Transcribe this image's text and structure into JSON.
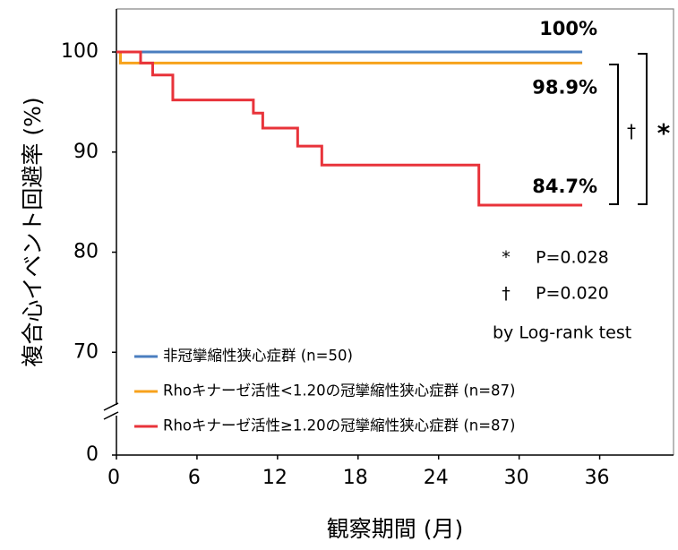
{
  "chart_data": {
    "type": "step",
    "xlabel": "観察期間 (月)",
    "ylabel": "複合心イベント回避率 (%)",
    "xlim": [
      0,
      41.5
    ],
    "ylim": [
      0,
      104.3
    ],
    "ybreak": [
      0,
      60
    ],
    "xticks": [
      0,
      6,
      12,
      18,
      24,
      30,
      36
    ],
    "yticks": [
      0,
      70,
      80,
      90,
      100
    ],
    "legend": "lower left",
    "series": [
      {
        "name": "非冠攣縮性狭心症群 (n=50)",
        "color": "#4a7ebf",
        "x": [
          0,
          34.7
        ],
        "values": [
          100,
          100
        ],
        "value_labels": [
          null,
          "100%"
        ]
      },
      {
        "name": "Rhoキナーゼ活性<1.20の冠攣縮性狭心症群 (n=87)",
        "color": "#f7a21b",
        "x": [
          0,
          0.3,
          34.7
        ],
        "values": [
          100,
          98.9,
          98.9
        ],
        "value_labels": [
          null,
          null,
          "98.9%"
        ]
      },
      {
        "name": "Rhoキナーゼ活性≥1.20の冠攣縮性狭心症群 (n=87)",
        "color": "#e8333a",
        "x": [
          0,
          1.8,
          2.7,
          4.2,
          10.2,
          10.9,
          13.5,
          15.3,
          27,
          34.7
        ],
        "values": [
          100,
          98.9,
          97.7,
          95.2,
          93.9,
          92.4,
          90.6,
          88.7,
          84.7,
          84.7
        ],
        "value_labels": [
          null,
          null,
          null,
          null,
          null,
          null,
          null,
          null,
          null,
          "84.7%"
        ]
      }
    ],
    "annotations": {
      "significance": [
        {
          "symbol": "*",
          "text": "P=0.028"
        },
        {
          "symbol": "†",
          "text": "P=0.020"
        }
      ],
      "test": "by Log-rank test"
    }
  }
}
